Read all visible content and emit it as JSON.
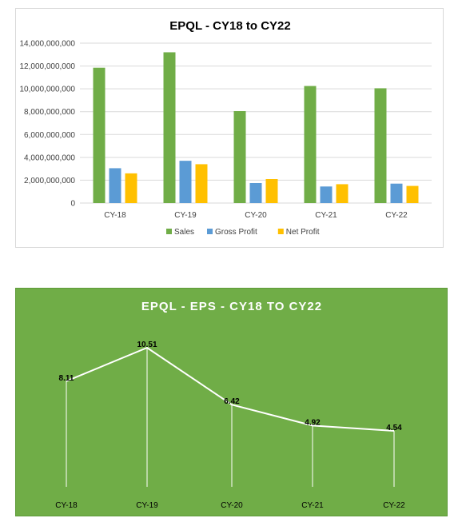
{
  "chart_data": [
    {
      "type": "bar",
      "title": "EPQL - CY18 to CY22",
      "categories": [
        "CY-18",
        "CY-19",
        "CY-20",
        "CY-21",
        "CY-22"
      ],
      "series": [
        {
          "name": "Sales",
          "color": "#70ad47",
          "values": [
            11850000000,
            13200000000,
            8050000000,
            10250000000,
            10050000000
          ]
        },
        {
          "name": "Gross Profit",
          "color": "#5b9bd5",
          "values": [
            3050000000,
            3700000000,
            1750000000,
            1450000000,
            1700000000
          ]
        },
        {
          "name": "Net Profit",
          "color": "#ffc000",
          "values": [
            2600000000,
            3400000000,
            2100000000,
            1650000000,
            1500000000
          ]
        }
      ],
      "yticks": [
        "0",
        "2,000,000,000",
        "4,000,000,000",
        "6,000,000,000",
        "8,000,000,000",
        "10,000,000,000",
        "12,000,000,000",
        "14,000,000,000"
      ],
      "ylim": [
        0,
        14000000000
      ],
      "grid": true,
      "legend": "bottom"
    },
    {
      "type": "line",
      "title": "EPQL - EPS - CY18 TO CY22",
      "categories": [
        "CY-18",
        "CY-19",
        "CY-20",
        "CY-21",
        "CY-22"
      ],
      "values": [
        8.11,
        10.51,
        6.42,
        4.92,
        4.54
      ],
      "value_labels": [
        "8.11",
        "10.51",
        "6.42",
        "4.92",
        "4.54"
      ],
      "background": "#70ad47",
      "line_color": "#ffffff",
      "drop_lines": true
    }
  ]
}
